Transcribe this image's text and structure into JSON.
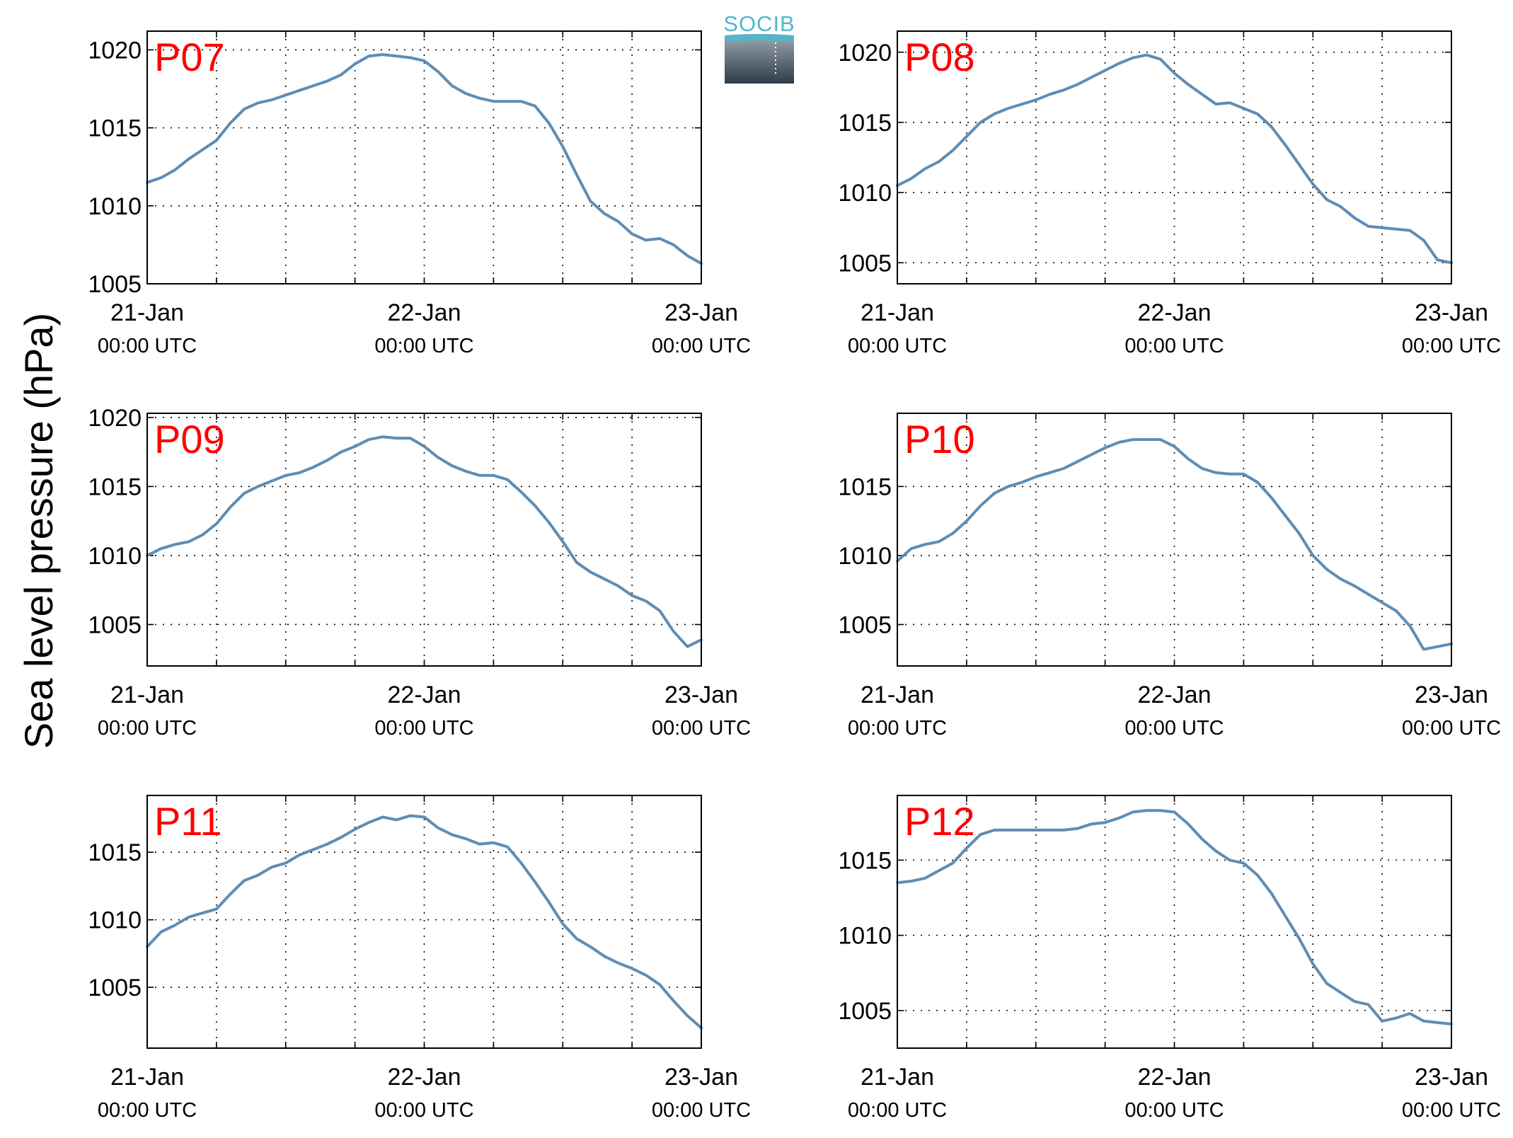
{
  "figure": {
    "ylabel": "Sea level pressure (hPa)",
    "logo_text": "SOCIB",
    "line_color": "#5e8db4",
    "panel_label_color": "#ff0000",
    "logo_color": "#4fb7cc",
    "tick_time_label": "00:00 UTC"
  },
  "chart_data": [
    {
      "type": "line",
      "title": "P07",
      "x_range_days": [
        0,
        2
      ],
      "x_ticks": [
        {
          "x": 0,
          "label": "21-Jan",
          "sublabel": "00:00 UTC"
        },
        {
          "x": 1,
          "label": "22-Jan",
          "sublabel": "00:00 UTC"
        },
        {
          "x": 2,
          "label": "23-Jan",
          "sublabel": "00:00 UTC"
        }
      ],
      "ylim": [
        1005,
        1021.2
      ],
      "yticks": [
        1005,
        1010,
        1015,
        1020
      ],
      "grid": true,
      "series": [
        {
          "x": [
            0,
            0.05,
            0.1,
            0.15,
            0.2,
            0.25,
            0.3,
            0.35,
            0.4,
            0.45,
            0.5,
            0.55,
            0.6,
            0.65,
            0.7,
            0.75,
            0.8,
            0.85,
            0.9,
            0.95,
            1.0,
            1.05,
            1.1,
            1.15,
            1.2,
            1.25,
            1.3,
            1.35,
            1.4,
            1.45,
            1.5,
            1.55,
            1.6,
            1.65,
            1.7,
            1.75,
            1.8,
            1.85,
            1.9,
            1.95,
            2.0
          ],
          "y": [
            1011.5,
            1011.8,
            1012.3,
            1013.0,
            1013.6,
            1014.2,
            1015.3,
            1016.2,
            1016.6,
            1016.8,
            1017.1,
            1017.4,
            1017.7,
            1018.0,
            1018.4,
            1019.1,
            1019.6,
            1019.7,
            1019.6,
            1019.5,
            1019.3,
            1018.6,
            1017.7,
            1017.2,
            1016.9,
            1016.7,
            1016.7,
            1016.7,
            1016.4,
            1015.3,
            1013.8,
            1012.0,
            1010.3,
            1009.5,
            1009.0,
            1008.2,
            1007.8,
            1007.9,
            1007.5,
            1006.8,
            1006.3
          ]
        }
      ]
    },
    {
      "type": "line",
      "title": "P08",
      "x_range_days": [
        0,
        2
      ],
      "x_ticks": [
        {
          "x": 0,
          "label": "21-Jan",
          "sublabel": "00:00 UTC"
        },
        {
          "x": 1,
          "label": "22-Jan",
          "sublabel": "00:00 UTC"
        },
        {
          "x": 2,
          "label": "23-Jan",
          "sublabel": "00:00 UTC"
        }
      ],
      "ylim": [
        1003.5,
        1021.5
      ],
      "yticks": [
        1005,
        1010,
        1015,
        1020
      ],
      "grid": true,
      "series": [
        {
          "x": [
            0,
            0.05,
            0.1,
            0.15,
            0.2,
            0.25,
            0.3,
            0.35,
            0.4,
            0.45,
            0.5,
            0.55,
            0.6,
            0.65,
            0.7,
            0.75,
            0.8,
            0.85,
            0.9,
            0.95,
            1.0,
            1.05,
            1.1,
            1.15,
            1.2,
            1.25,
            1.3,
            1.35,
            1.4,
            1.45,
            1.5,
            1.55,
            1.6,
            1.65,
            1.7,
            1.75,
            1.8,
            1.85,
            1.9,
            1.95,
            2.0
          ],
          "y": [
            1010.5,
            1011.0,
            1011.7,
            1012.2,
            1013.0,
            1014.0,
            1015.0,
            1015.6,
            1016.0,
            1016.3,
            1016.6,
            1017.0,
            1017.3,
            1017.7,
            1018.2,
            1018.7,
            1019.2,
            1019.6,
            1019.8,
            1019.5,
            1018.5,
            1017.7,
            1017.0,
            1016.3,
            1016.4,
            1016.0,
            1015.6,
            1014.7,
            1013.4,
            1012.0,
            1010.6,
            1009.5,
            1009.0,
            1008.2,
            1007.6,
            1007.5,
            1007.4,
            1007.3,
            1006.6,
            1005.2,
            1005.0
          ]
        }
      ]
    },
    {
      "type": "line",
      "title": "P09",
      "x_range_days": [
        0,
        2
      ],
      "x_ticks": [
        {
          "x": 0,
          "label": "21-Jan",
          "sublabel": "00:00 UTC"
        },
        {
          "x": 1,
          "label": "22-Jan",
          "sublabel": "00:00 UTC"
        },
        {
          "x": 2,
          "label": "23-Jan",
          "sublabel": "00:00 UTC"
        }
      ],
      "ylim": [
        1002,
        1020.3
      ],
      "yticks": [
        1005,
        1010,
        1015,
        1020
      ],
      "grid": true,
      "series": [
        {
          "x": [
            0,
            0.05,
            0.1,
            0.15,
            0.2,
            0.25,
            0.3,
            0.35,
            0.4,
            0.45,
            0.5,
            0.55,
            0.6,
            0.65,
            0.7,
            0.75,
            0.8,
            0.85,
            0.9,
            0.95,
            1.0,
            1.05,
            1.1,
            1.15,
            1.2,
            1.25,
            1.3,
            1.35,
            1.4,
            1.45,
            1.5,
            1.55,
            1.6,
            1.65,
            1.7,
            1.75,
            1.8,
            1.85,
            1.9,
            1.95,
            2.0
          ],
          "y": [
            1010.0,
            1010.5,
            1010.8,
            1011.0,
            1011.5,
            1012.3,
            1013.5,
            1014.5,
            1015.0,
            1015.4,
            1015.8,
            1016.0,
            1016.4,
            1016.9,
            1017.5,
            1017.9,
            1018.4,
            1018.6,
            1018.5,
            1018.5,
            1017.9,
            1017.1,
            1016.5,
            1016.1,
            1015.8,
            1015.8,
            1015.5,
            1014.6,
            1013.6,
            1012.4,
            1011.0,
            1009.5,
            1008.8,
            1008.3,
            1007.8,
            1007.1,
            1006.7,
            1006.0,
            1004.5,
            1003.4,
            1003.9
          ]
        }
      ]
    },
    {
      "type": "line",
      "title": "P10",
      "x_range_days": [
        0,
        2
      ],
      "x_ticks": [
        {
          "x": 0,
          "label": "21-Jan",
          "sublabel": "00:00 UTC"
        },
        {
          "x": 1,
          "label": "22-Jan",
          "sublabel": "00:00 UTC"
        },
        {
          "x": 2,
          "label": "23-Jan",
          "sublabel": "00:00 UTC"
        }
      ],
      "ylim": [
        1002,
        1020.3
      ],
      "yticks": [
        1005,
        1010,
        1015
      ],
      "grid": true,
      "series": [
        {
          "x": [
            0,
            0.05,
            0.1,
            0.15,
            0.2,
            0.25,
            0.3,
            0.35,
            0.4,
            0.45,
            0.5,
            0.55,
            0.6,
            0.65,
            0.7,
            0.75,
            0.8,
            0.85,
            0.9,
            0.95,
            1.0,
            1.05,
            1.1,
            1.15,
            1.2,
            1.25,
            1.3,
            1.35,
            1.4,
            1.45,
            1.5,
            1.55,
            1.6,
            1.65,
            1.7,
            1.75,
            1.8,
            1.85,
            1.9,
            1.95,
            2.0
          ],
          "y": [
            1009.6,
            1010.5,
            1010.8,
            1011.0,
            1011.6,
            1012.5,
            1013.6,
            1014.5,
            1015.0,
            1015.3,
            1015.7,
            1016.0,
            1016.3,
            1016.8,
            1017.3,
            1017.8,
            1018.2,
            1018.4,
            1018.4,
            1018.4,
            1017.9,
            1017.0,
            1016.3,
            1016.0,
            1015.9,
            1015.9,
            1015.3,
            1014.2,
            1012.9,
            1011.6,
            1010.0,
            1009.0,
            1008.3,
            1007.8,
            1007.2,
            1006.6,
            1006.0,
            1004.9,
            1003.2,
            1003.4,
            1003.6
          ]
        }
      ]
    },
    {
      "type": "line",
      "title": "P11",
      "x_range_days": [
        0,
        2
      ],
      "x_ticks": [
        {
          "x": 0,
          "label": "21-Jan",
          "sublabel": "00:00 UTC"
        },
        {
          "x": 1,
          "label": "22-Jan",
          "sublabel": "00:00 UTC"
        },
        {
          "x": 2,
          "label": "23-Jan",
          "sublabel": "00:00 UTC"
        }
      ],
      "ylim": [
        1000.5,
        1019.2
      ],
      "yticks": [
        1005,
        1010,
        1015
      ],
      "grid": true,
      "series": [
        {
          "x": [
            0,
            0.05,
            0.1,
            0.15,
            0.2,
            0.25,
            0.3,
            0.35,
            0.4,
            0.45,
            0.5,
            0.55,
            0.6,
            0.65,
            0.7,
            0.75,
            0.8,
            0.85,
            0.9,
            0.95,
            1.0,
            1.05,
            1.1,
            1.15,
            1.2,
            1.25,
            1.3,
            1.35,
            1.4,
            1.45,
            1.5,
            1.55,
            1.6,
            1.65,
            1.7,
            1.75,
            1.8,
            1.85,
            1.9,
            1.95,
            2.0
          ],
          "y": [
            1008.0,
            1009.1,
            1009.6,
            1010.2,
            1010.5,
            1010.8,
            1011.9,
            1012.9,
            1013.3,
            1013.9,
            1014.2,
            1014.8,
            1015.2,
            1015.6,
            1016.1,
            1016.7,
            1017.2,
            1017.6,
            1017.4,
            1017.7,
            1017.6,
            1016.8,
            1016.3,
            1016.0,
            1015.6,
            1015.7,
            1015.4,
            1014.2,
            1012.8,
            1011.3,
            1009.7,
            1008.6,
            1008.0,
            1007.3,
            1006.8,
            1006.4,
            1005.9,
            1005.2,
            1004.0,
            1002.9,
            1002.0
          ]
        }
      ]
    },
    {
      "type": "line",
      "title": "P12",
      "x_range_days": [
        0,
        2
      ],
      "x_ticks": [
        {
          "x": 0,
          "label": "21-Jan",
          "sublabel": "00:00 UTC"
        },
        {
          "x": 1,
          "label": "22-Jan",
          "sublabel": "00:00 UTC"
        },
        {
          "x": 2,
          "label": "23-Jan",
          "sublabel": "00:00 UTC"
        }
      ],
      "ylim": [
        1002.5,
        1019.3
      ],
      "yticks": [
        1005,
        1010,
        1015
      ],
      "grid": true,
      "series": [
        {
          "x": [
            0,
            0.05,
            0.1,
            0.15,
            0.2,
            0.25,
            0.3,
            0.35,
            0.4,
            0.45,
            0.5,
            0.55,
            0.6,
            0.65,
            0.7,
            0.75,
            0.8,
            0.85,
            0.9,
            0.95,
            1.0,
            1.05,
            1.1,
            1.15,
            1.2,
            1.25,
            1.3,
            1.35,
            1.4,
            1.45,
            1.5,
            1.55,
            1.6,
            1.65,
            1.7,
            1.75,
            1.8,
            1.85,
            1.9,
            1.95,
            2.0
          ],
          "y": [
            1013.5,
            1013.6,
            1013.8,
            1014.3,
            1014.8,
            1015.8,
            1016.7,
            1017.0,
            1017.0,
            1017.0,
            1017.0,
            1017.0,
            1017.0,
            1017.1,
            1017.4,
            1017.5,
            1017.8,
            1018.2,
            1018.3,
            1018.3,
            1018.2,
            1017.4,
            1016.4,
            1015.6,
            1015.0,
            1014.8,
            1014.0,
            1012.8,
            1011.3,
            1009.8,
            1008.1,
            1006.8,
            1006.2,
            1005.6,
            1005.4,
            1004.3,
            1004.5,
            1004.8,
            1004.3,
            1004.2,
            1004.1
          ]
        }
      ]
    }
  ]
}
